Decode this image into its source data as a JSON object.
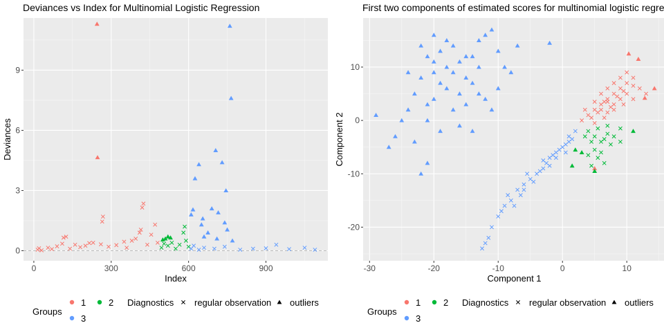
{
  "colors": {
    "g1": "#F8766D",
    "g2": "#00BA38",
    "g3": "#619CFF",
    "panel_bg": "#EBEBEB",
    "grid_major": "#FFFFFF"
  },
  "legend": {
    "groups_title": "Groups",
    "groups": [
      "1",
      "2",
      "3"
    ],
    "diagnostics_title": "Diagnostics",
    "diag_regular": "regular observation",
    "diag_outliers": "outliers"
  },
  "chart_data": [
    {
      "type": "scatter",
      "title": "Deviances vs Index for Multinomial Logistic Regression",
      "xlabel": "Index",
      "ylabel": "Deviances",
      "xlim": [
        -40,
        1140
      ],
      "ylim": [
        -0.5,
        11.6
      ],
      "x_ticks": [
        0,
        300,
        600,
        900
      ],
      "y_ticks": [
        0,
        3,
        6,
        9
      ],
      "x_tick_labels": [
        "0",
        "300",
        "600",
        "900"
      ],
      "y_tick_labels": [
        "0",
        "3",
        "6",
        "9"
      ],
      "grid": true,
      "reference_line_y": 0,
      "series": [
        {
          "name": "1",
          "color": "#F8766D",
          "points": [
            [
              15,
              0.05
            ],
            [
              20,
              0.12
            ],
            [
              30,
              0.02
            ],
            [
              55,
              0.15
            ],
            [
              70,
              0.08
            ],
            [
              90,
              0.22
            ],
            [
              110,
              0.35
            ],
            [
              115,
              0.65
            ],
            [
              125,
              0.7
            ],
            [
              140,
              0.1
            ],
            [
              160,
              0.3
            ],
            [
              180,
              0.18
            ],
            [
              200,
              0.25
            ],
            [
              215,
              0.38
            ],
            [
              230,
              0.4
            ],
            [
              260,
              0.32
            ],
            [
              265,
              1.45
            ],
            [
              268,
              1.7
            ],
            [
              290,
              0.2
            ],
            [
              320,
              0.28
            ],
            [
              350,
              0.45
            ],
            [
              360,
              0.15
            ],
            [
              380,
              0.5
            ],
            [
              395,
              0.6
            ],
            [
              410,
              0.9
            ],
            [
              415,
              1.05
            ],
            [
              420,
              2.15
            ],
            [
              425,
              2.35
            ],
            [
              440,
              0.3
            ],
            [
              455,
              0.8
            ],
            [
              470,
              1.3
            ],
            [
              480,
              0.4
            ]
          ],
          "outliers": [
            [
              245,
              11.3
            ],
            [
              247,
              4.65
            ]
          ]
        },
        {
          "name": "2",
          "color": "#00BA38",
          "points": [
            [
              495,
              0.15
            ],
            [
              505,
              0.35
            ],
            [
              520,
              0.25
            ],
            [
              535,
              0.4
            ],
            [
              550,
              0.1
            ],
            [
              565,
              0.3
            ],
            [
              580,
              0.9
            ],
            [
              585,
              1.2
            ],
            [
              590,
              0.5
            ],
            [
              600,
              0.2
            ]
          ],
          "outliers": [
            [
              500,
              0.55
            ],
            [
              510,
              0.6
            ],
            [
              520,
              0.7
            ],
            [
              530,
              0.65
            ]
          ]
        },
        {
          "name": "3",
          "color": "#619CFF",
          "points": [
            [
              610,
              0.1
            ],
            [
              620,
              0.25
            ],
            [
              640,
              0.05
            ],
            [
              660,
              0.15
            ],
            [
              700,
              0.1
            ],
            [
              740,
              0.2
            ],
            [
              800,
              0.05
            ],
            [
              850,
              0.1
            ],
            [
              900,
              0.12
            ],
            [
              940,
              0.3
            ],
            [
              990,
              0.08
            ],
            [
              1050,
              0.15
            ],
            [
              1090,
              0.05
            ]
          ],
          "outliers": [
            [
              610,
              1.8
            ],
            [
              617,
              2.05
            ],
            [
              625,
              3.6
            ],
            [
              640,
              4.3
            ],
            [
              650,
              1.3
            ],
            [
              655,
              1.6
            ],
            [
              660,
              0.7
            ],
            [
              675,
              0.9
            ],
            [
              690,
              2.1
            ],
            [
              705,
              5.0
            ],
            [
              710,
              0.6
            ],
            [
              715,
              1.9
            ],
            [
              730,
              4.4
            ],
            [
              740,
              1.4
            ],
            [
              745,
              3.0
            ],
            [
              750,
              1.05
            ],
            [
              760,
              11.2
            ],
            [
              765,
              7.6
            ],
            [
              770,
              0.5
            ]
          ]
        }
      ]
    },
    {
      "type": "scatter",
      "title": "First two components of estimated scores for multinomial logistic regression",
      "xlabel": "Component 1",
      "ylabel": "Component 2",
      "xlim": [
        -31,
        16
      ],
      "ylim": [
        -26.3,
        19.2
      ],
      "x_ticks": [
        -30,
        -20,
        -10,
        0,
        10
      ],
      "y_ticks": [
        -20,
        -10,
        0,
        10
      ],
      "x_tick_labels": [
        "-30",
        "-20",
        "-10",
        "0",
        "10"
      ],
      "y_tick_labels": [
        "-20",
        "-10",
        "0",
        "10"
      ],
      "grid": true,
      "series": [
        {
          "name": "1",
          "color": "#F8766D",
          "points": [
            [
              4,
              1
            ],
            [
              5,
              2
            ],
            [
              6,
              3
            ],
            [
              7,
              4
            ],
            [
              8,
              5
            ],
            [
              9,
              6
            ],
            [
              10,
              7
            ],
            [
              5.5,
              1.5
            ],
            [
              6.5,
              3.5
            ],
            [
              7.5,
              2.5
            ],
            [
              8.5,
              4.5
            ],
            [
              9.5,
              5.5
            ],
            [
              4.5,
              0.5
            ],
            [
              6,
              2
            ],
            [
              7,
              3.5
            ],
            [
              8,
              3
            ],
            [
              9,
              4
            ],
            [
              10,
              5
            ],
            [
              11,
              6.5
            ],
            [
              3.5,
              2
            ],
            [
              5,
              3.5
            ],
            [
              6,
              5
            ],
            [
              7,
              6
            ],
            [
              8,
              7
            ],
            [
              9,
              8
            ],
            [
              10,
              9
            ],
            [
              11,
              8
            ],
            [
              7,
              1.5
            ],
            [
              8,
              2
            ],
            [
              9.5,
              3
            ],
            [
              5,
              -0.5
            ],
            [
              6.5,
              0.5
            ],
            [
              12,
              6
            ],
            [
              13,
              5
            ],
            [
              11,
              4
            ],
            [
              3,
              0
            ]
          ],
          "outliers": [
            [
              10.3,
              12.5
            ],
            [
              11.8,
              11.5
            ],
            [
              14.3,
              6
            ],
            [
              12.8,
              4.2
            ],
            [
              5,
              -9
            ]
          ]
        },
        {
          "name": "2",
          "color": "#00BA38",
          "points": [
            [
              4,
              -2
            ],
            [
              5,
              -3
            ],
            [
              6,
              -4
            ],
            [
              7,
              -2.5
            ],
            [
              5.5,
              -1.5
            ],
            [
              6.5,
              -3.5
            ],
            [
              4.5,
              -4
            ],
            [
              7.5,
              -4.5
            ],
            [
              5,
              -5.5
            ],
            [
              6,
              -6
            ],
            [
              4,
              -6.5
            ],
            [
              8,
              -3
            ],
            [
              9,
              -4
            ],
            [
              9,
              -1.5
            ],
            [
              3.5,
              -3
            ],
            [
              5.5,
              -7
            ],
            [
              6.5,
              -8
            ],
            [
              4.5,
              -8.5
            ],
            [
              7,
              -1
            ]
          ],
          "outliers": [
            [
              2,
              -5.5
            ],
            [
              1.5,
              -8.5
            ],
            [
              3,
              -6
            ],
            [
              5,
              -9.5
            ],
            [
              11,
              -2
            ]
          ]
        },
        {
          "name": "3",
          "color": "#619CFF",
          "points": [
            [
              0,
              -5
            ],
            [
              -1,
              -6
            ],
            [
              -2,
              -7
            ],
            [
              1,
              -4
            ],
            [
              -0.5,
              -5.5
            ],
            [
              0.5,
              -4.5
            ],
            [
              -1.5,
              -6.5
            ],
            [
              -2.5,
              -8
            ],
            [
              -3,
              -9
            ],
            [
              -4,
              -10
            ],
            [
              -5,
              -11
            ],
            [
              -6,
              -12
            ],
            [
              -7,
              -13
            ],
            [
              -8,
              -15
            ],
            [
              -9,
              -16
            ],
            [
              -10,
              -18
            ],
            [
              -11,
              -20
            ],
            [
              -12,
              -23
            ],
            [
              2,
              -2
            ],
            [
              1,
              -3
            ],
            [
              -3.5,
              -9.5
            ],
            [
              -5.5,
              -10
            ],
            [
              -6.5,
              -14
            ],
            [
              -8.5,
              -14
            ],
            [
              -2,
              -8.5
            ],
            [
              -1,
              -7
            ],
            [
              0.5,
              -6
            ],
            [
              -4.5,
              -11.5
            ],
            [
              -7.5,
              -16
            ],
            [
              -3,
              -7.5
            ],
            [
              1.5,
              -3.5
            ],
            [
              -6,
              -13
            ],
            [
              -9.5,
              -17
            ],
            [
              -11.5,
              -22
            ],
            [
              -12.5,
              -24
            ]
          ],
          "outliers": [
            [
              -21,
              12
            ],
            [
              -20,
              9
            ],
            [
              -19,
              13
            ],
            [
              -18,
              10
            ],
            [
              -17,
              14
            ],
            [
              -16,
              11
            ],
            [
              -15,
              8
            ],
            [
              -14,
              12
            ],
            [
              -13,
              10
            ],
            [
              -22,
              8
            ],
            [
              -23,
              5
            ],
            [
              -24,
              2
            ],
            [
              -25,
              0
            ],
            [
              -27,
              -5
            ],
            [
              -29,
              1
            ],
            [
              -22,
              -10
            ],
            [
              -21,
              0
            ],
            [
              -20,
              4
            ],
            [
              -18,
              6
            ],
            [
              -17,
              2
            ],
            [
              -19,
              -2
            ],
            [
              -16,
              5
            ],
            [
              -15,
              3
            ],
            [
              -14,
              7
            ],
            [
              -13,
              15
            ],
            [
              -12,
              16
            ],
            [
              -11,
              17
            ],
            [
              -10,
              13
            ],
            [
              -9,
              10
            ],
            [
              -8,
              9
            ],
            [
              -7,
              14
            ],
            [
              -2,
              14.5
            ],
            [
              -20,
              16
            ],
            [
              -18,
              15
            ],
            [
              -23,
              -4
            ],
            [
              -21,
              -8
            ],
            [
              -26,
              -3
            ],
            [
              -12,
              4
            ],
            [
              -11,
              2
            ],
            [
              -10,
              6
            ],
            [
              -16,
              -1
            ],
            [
              -14,
              -2
            ],
            [
              -20,
              11
            ],
            [
              -19,
              7
            ],
            [
              -17,
              9
            ],
            [
              -15,
              12
            ],
            [
              -13,
              5
            ],
            [
              -24,
              9
            ],
            [
              -22,
              14
            ],
            [
              -21,
              3
            ]
          ]
        }
      ]
    }
  ]
}
